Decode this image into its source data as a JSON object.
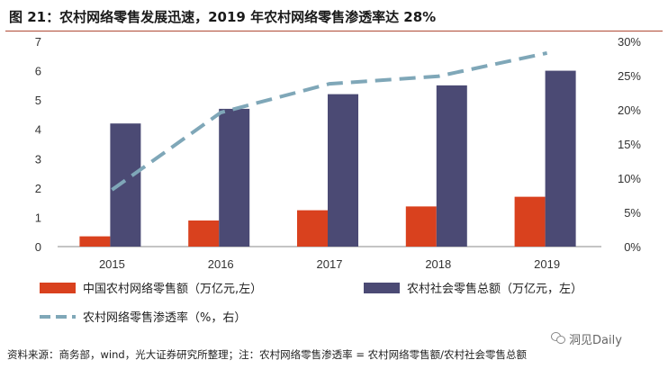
{
  "header": {
    "title": "图 21：农村网络零售发展迅速，2019 年农村网络零售渗透率达 28%"
  },
  "footer": {
    "source": "资料来源：商务部，wind，光大证券研究所整理；注：农村网络零售渗透率 = 农村网络零售额/农村社会零售总额",
    "watermark": "洞见Daily",
    "watermark_icon": "wechat-icon"
  },
  "chart_data": {
    "type": "bar",
    "categories": [
      "2015",
      "2016",
      "2017",
      "2018",
      "2019"
    ],
    "series": [
      {
        "name": "中国农村网络零售额（万亿元,左）",
        "type": "bar",
        "axis": "left",
        "color": "#d9411e",
        "values": [
          0.35,
          0.89,
          1.24,
          1.37,
          1.7
        ]
      },
      {
        "name": "农村社会零售总额（万亿元，左）",
        "type": "bar",
        "axis": "left",
        "color": "#4b4a74",
        "values": [
          4.2,
          4.7,
          5.2,
          5.5,
          6.0
        ]
      },
      {
        "name": "农村网络零售渗透率（%，右）",
        "type": "line",
        "style": "dashed",
        "axis": "right",
        "color": "#7fa7b8",
        "values": [
          8.3,
          19.6,
          23.8,
          24.9,
          28.3
        ]
      }
    ],
    "left_axis": {
      "ylim": [
        0,
        7
      ],
      "ticks": [
        "0",
        "1",
        "2",
        "3",
        "4",
        "5",
        "6",
        "7"
      ]
    },
    "right_axis": {
      "ylim": [
        0,
        30
      ],
      "ticks": [
        "0%",
        "5%",
        "10%",
        "15%",
        "20%",
        "25%",
        "30%"
      ]
    },
    "grid": false,
    "legend_position": "bottom"
  }
}
